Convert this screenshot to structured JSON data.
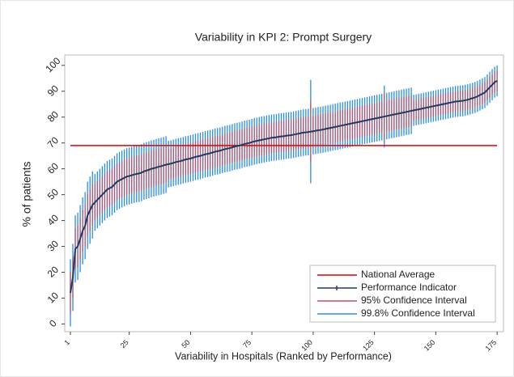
{
  "chart_data": {
    "type": "errorbar",
    "title": "Variability in KPI 2: Prompt Surgery",
    "x_label": "Variability in Hospitals (Ranked by Performance)",
    "y_label": "% of patients",
    "xlim": [
      -1.3,
      177.6
    ],
    "ylim": [
      -3,
      104
    ],
    "xticks": [
      1,
      25,
      50,
      75,
      100,
      125,
      150,
      175
    ],
    "yticks": [
      0,
      10,
      20,
      30,
      40,
      50,
      60,
      70,
      80,
      90,
      100
    ],
    "legend": "lower right",
    "reference": {
      "name": "National Average",
      "value": 69,
      "color": "#e00000"
    },
    "x": [
      1,
      2,
      3,
      4,
      5,
      6,
      7,
      8,
      9,
      10,
      11,
      12,
      13,
      14,
      15,
      16,
      17,
      18,
      19,
      20,
      21,
      22,
      23,
      24,
      25,
      26,
      27,
      28,
      29,
      30,
      31,
      32,
      33,
      34,
      35,
      36,
      37,
      38,
      39,
      40,
      41,
      42,
      43,
      44,
      45,
      46,
      47,
      48,
      49,
      50,
      51,
      52,
      53,
      54,
      55,
      56,
      57,
      58,
      59,
      60,
      61,
      62,
      63,
      64,
      65,
      66,
      67,
      68,
      69,
      70,
      71,
      72,
      73,
      74,
      75,
      76,
      77,
      78,
      79,
      80,
      81,
      82,
      83,
      84,
      85,
      86,
      87,
      88,
      89,
      90,
      91,
      92,
      93,
      94,
      95,
      96,
      97,
      98,
      99,
      100,
      101,
      102,
      103,
      104,
      105,
      106,
      107,
      108,
      109,
      110,
      111,
      112,
      113,
      114,
      115,
      116,
      117,
      118,
      119,
      120,
      121,
      122,
      123,
      124,
      125,
      126,
      127,
      128,
      129,
      130,
      131,
      132,
      133,
      134,
      135,
      136,
      137,
      138,
      139,
      140,
      141,
      142,
      143,
      144,
      145,
      146,
      147,
      148,
      149,
      150,
      151,
      152,
      153,
      154,
      155,
      156,
      157,
      158,
      159,
      160,
      161,
      162,
      163,
      164,
      165,
      166,
      167,
      168,
      169,
      170,
      171,
      172,
      173,
      174,
      175
    ],
    "series": [
      {
        "name": "Performance Indicator",
        "color": "#1c3a66",
        "values": [
          12,
          18,
          29,
          30,
          33,
          36,
          38,
          42,
          44,
          46,
          47,
          48,
          49,
          50,
          51,
          52,
          52.5,
          53,
          54,
          55,
          55.5,
          56,
          56.5,
          57,
          57.2,
          57.5,
          57.8,
          58,
          58.2,
          58.5,
          59,
          59.3,
          59.6,
          60,
          60.2,
          60.5,
          60.8,
          61,
          61.3,
          61.6,
          61.8,
          62,
          62.3,
          62.6,
          62.8,
          63,
          63.3,
          63.6,
          63.8,
          64,
          64.3,
          64.6,
          64.8,
          65,
          65.3,
          65.6,
          65.8,
          66,
          66.3,
          66.6,
          66.8,
          67,
          67.3,
          67.6,
          67.8,
          68,
          68.3,
          68.6,
          68.8,
          69,
          69.3,
          69.6,
          69.8,
          70,
          70.3,
          70.6,
          70.8,
          71,
          71.2,
          71.4,
          71.6,
          71.8,
          72,
          72.1,
          72.2,
          72.4,
          72.5,
          72.6,
          72.8,
          72.9,
          73,
          73.2,
          73.4,
          73.6,
          73.8,
          74,
          74.1,
          74.2,
          74.4,
          74.5,
          74.7,
          74.9,
          75,
          75.2,
          75.4,
          75.6,
          75.8,
          76,
          76.2,
          76.4,
          76.6,
          76.8,
          77,
          77.2,
          77.4,
          77.6,
          77.8,
          78,
          78.2,
          78.4,
          78.6,
          78.8,
          79,
          79.2,
          79.4,
          79.6,
          79.8,
          80,
          80.2,
          80.4,
          80.6,
          80.8,
          81,
          81.2,
          81.4,
          81.6,
          81.8,
          82,
          82.2,
          82.4,
          82.6,
          82.8,
          83,
          83.2,
          83.4,
          83.6,
          83.8,
          84,
          84.2,
          84.4,
          84.6,
          84.8,
          85,
          85.2,
          85.4,
          85.6,
          85.8,
          86,
          86.1,
          86.2,
          86.3,
          86.5,
          86.7,
          87,
          87.3,
          87.6,
          88,
          88.5,
          89,
          89.5,
          90.5,
          91.5,
          92.5,
          93.5,
          94
        ]
      },
      {
        "name": "95% Confidence Interval",
        "color": "#c0505f",
        "errors": [
          8,
          8,
          8,
          8,
          8,
          8,
          8,
          8,
          8,
          8,
          7,
          7,
          7,
          7,
          7,
          7,
          7,
          7,
          7,
          7,
          7,
          7,
          7,
          7,
          7,
          7,
          7,
          7,
          7,
          7,
          7,
          7,
          7,
          7,
          7,
          7,
          7,
          7,
          7,
          7,
          6,
          6,
          6,
          6,
          6,
          6,
          6,
          6,
          6,
          6,
          6,
          6,
          6,
          6,
          6,
          6,
          6,
          6,
          6,
          6,
          6,
          6,
          6,
          6,
          6,
          6,
          6,
          6,
          6,
          6,
          6,
          6,
          6,
          6,
          6,
          6,
          6,
          6,
          6,
          6,
          6,
          6,
          6,
          6,
          6,
          6,
          6,
          6,
          6,
          6,
          6,
          6,
          6,
          6,
          6,
          6,
          6,
          6,
          12,
          6,
          6,
          6,
          6,
          6,
          6,
          6,
          6,
          6,
          6,
          6,
          6,
          6,
          6,
          6,
          6,
          6,
          6,
          6,
          6,
          6,
          6,
          6,
          6,
          6,
          6,
          6,
          6,
          6,
          9,
          6,
          6,
          6,
          6,
          6,
          6,
          6,
          6,
          6,
          6,
          6,
          4,
          4,
          4,
          4,
          4,
          4,
          4,
          4,
          4,
          4,
          4,
          4,
          4,
          4,
          4,
          4,
          4,
          4,
          4,
          4,
          4,
          4,
          4,
          4,
          4,
          4,
          4,
          4,
          4,
          4,
          4,
          4,
          4,
          4,
          4
        ]
      },
      {
        "name": "99.8% Confidence Interval",
        "color": "#2b8de6",
        "errors": [
          13,
          13,
          13,
          13,
          13,
          13,
          13,
          13,
          13,
          13,
          11,
          11,
          11,
          11,
          11,
          11,
          11,
          11,
          11,
          11,
          11,
          11,
          11,
          11,
          11,
          11,
          11,
          11,
          11,
          11,
          11,
          11,
          11,
          11,
          11,
          11,
          11,
          11,
          11,
          11,
          9,
          9,
          9,
          9,
          9,
          9,
          9,
          9,
          9,
          9,
          9,
          9,
          9,
          9,
          9,
          9,
          9,
          9,
          9,
          9,
          9,
          9,
          9,
          9,
          9,
          9,
          9,
          9,
          9,
          9,
          9,
          9,
          9,
          9,
          9,
          9,
          9,
          9,
          9,
          9,
          9,
          9,
          9,
          9,
          9,
          9,
          9,
          9,
          9,
          9,
          9,
          9,
          9,
          9,
          9,
          9,
          9,
          9,
          20,
          9,
          9,
          9,
          9,
          9,
          9,
          9,
          9,
          9,
          9,
          9,
          9,
          9,
          9,
          9,
          9,
          9,
          9,
          9,
          9,
          9,
          9,
          9,
          9,
          9,
          9,
          9,
          9,
          9,
          12,
          9,
          9,
          9,
          9,
          9,
          9,
          9,
          9,
          9,
          9,
          9,
          6,
          6,
          6,
          6,
          6,
          6,
          6,
          6,
          6,
          6,
          6,
          6,
          6,
          6,
          6,
          6,
          6,
          6,
          6,
          6,
          6,
          6,
          6,
          6,
          6,
          6,
          6,
          6,
          6,
          6,
          6,
          6,
          6,
          6,
          6
        ]
      }
    ]
  }
}
